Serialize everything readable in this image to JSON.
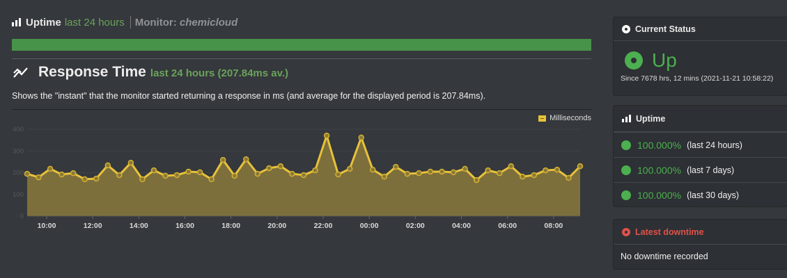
{
  "uptime_header": {
    "title": "Uptime",
    "period": "last 24 hours",
    "monitor_label": "Monitor:",
    "monitor_name": "chemicloud",
    "bar_color": "#48934a"
  },
  "response_time": {
    "title": "Response Time",
    "subtitle": "last 24 hours (207.84ms av.)",
    "description": "Shows the \"instant\" that the monitor started returning a response in ms (and average for the displayed period is 207.84ms).",
    "legend": "Milliseconds"
  },
  "current_status": {
    "title": "Current Status",
    "status": "Up",
    "since": "Since 7678 hrs, 12 mins (2021-11-21 10:58:22)"
  },
  "uptime_panel": {
    "title": "Uptime",
    "rows": [
      {
        "pct": "100.000%",
        "label": "(last 24 hours)"
      },
      {
        "pct": "100.000%",
        "label": "(last 7 days)"
      },
      {
        "pct": "100.000%",
        "label": "(last 30 days)"
      }
    ]
  },
  "latest_downtime": {
    "title": "Latest downtime",
    "text": "No downtime recorded"
  },
  "chart_data": {
    "type": "area",
    "title": "Response Time",
    "xlabel": "",
    "ylabel": "Milliseconds",
    "ylim": [
      0,
      400
    ],
    "yticks": [
      0,
      100,
      200,
      300,
      400
    ],
    "xticks": [
      "10:00",
      "12:00",
      "14:00",
      "16:00",
      "18:00",
      "20:00",
      "22:00",
      "00:00",
      "02:00",
      "04:00",
      "06:00",
      "08:00"
    ],
    "grid": true,
    "legend_position": "top-right",
    "series": [
      {
        "name": "Milliseconds",
        "color": "#e8c23a",
        "values": [
          195,
          179,
          218,
          192,
          198,
          170,
          173,
          234,
          189,
          246,
          170,
          211,
          186,
          189,
          205,
          202,
          170,
          259,
          186,
          262,
          195,
          221,
          230,
          195,
          189,
          211,
          371,
          192,
          218,
          362,
          214,
          182,
          227,
          195,
          198,
          205,
          205,
          202,
          218,
          166,
          211,
          198,
          230,
          182,
          189,
          211,
          214,
          176,
          230
        ]
      }
    ]
  }
}
